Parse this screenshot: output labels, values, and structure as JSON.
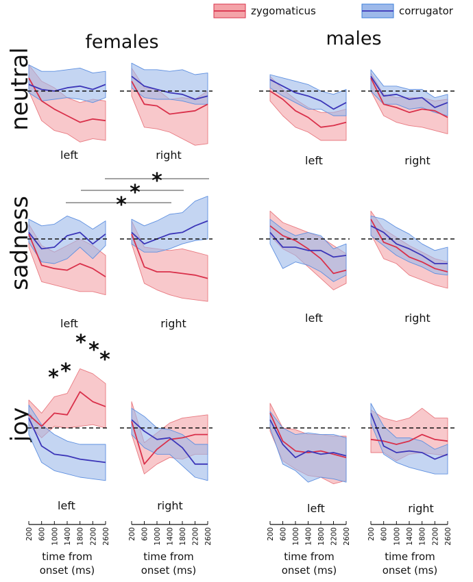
{
  "colors": {
    "zygomaticus_line": "#d9304a",
    "zygomaticus_fill": "#f4a3a8",
    "corrugator_line": "#3b35b8",
    "corrugator_fill": "#9db9ea"
  },
  "legend": {
    "zygomaticus": "zygomaticus",
    "corrugator": "corrugator"
  },
  "columns": {
    "females": "females",
    "males": "males"
  },
  "rows": [
    "neutral",
    "sadness",
    "joy"
  ],
  "sides": {
    "left": "left",
    "right": "right"
  },
  "x_axis": {
    "label_line1": "time from",
    "label_line2": "onset (ms)"
  },
  "significance_marker": "*",
  "chart_data": {
    "type": "line",
    "x": [
      200,
      600,
      1000,
      1400,
      1800,
      2200,
      2600
    ],
    "x_ticks": [
      "200",
      "600",
      "1000",
      "1400",
      "1800",
      "2200",
      "2600"
    ],
    "xlabel": "time from onset (ms)",
    "ylabel": "",
    "ylim": [
      -4,
      4
    ],
    "baseline": 0,
    "series_names": [
      "zygomaticus",
      "corrugator"
    ],
    "panels": [
      {
        "gender": "females",
        "emotion": "neutral",
        "side": "left",
        "zygomaticus": {
          "mean": [
            0.8,
            -0.6,
            -1.1,
            -1.5,
            -1.9,
            -1.7,
            -1.8
          ],
          "upper": [
            1.6,
            0.6,
            0.2,
            -0.4,
            -0.7,
            -0.5,
            -0.6
          ],
          "lower": [
            0.0,
            -1.8,
            -2.4,
            -2.6,
            -3.1,
            -2.9,
            -3.0
          ]
        },
        "corrugator": {
          "mean": [
            0.4,
            0.1,
            0.0,
            0.2,
            0.3,
            0.1,
            0.4
          ],
          "upper": [
            1.6,
            1.2,
            1.2,
            1.3,
            1.4,
            1.1,
            1.2
          ],
          "lower": [
            -0.1,
            -0.6,
            -0.5,
            -0.4,
            -0.5,
            -0.7,
            -0.4
          ]
        }
      },
      {
        "gender": "females",
        "emotion": "neutral",
        "side": "right",
        "zygomaticus": {
          "mean": [
            0.6,
            -0.8,
            -0.9,
            -1.4,
            -1.3,
            -1.2,
            -0.8
          ],
          "upper": [
            1.4,
            0.2,
            0.1,
            -0.5,
            -0.4,
            -0.5,
            0.0
          ],
          "lower": [
            -0.3,
            -2.2,
            -2.3,
            -2.5,
            -2.9,
            -3.3,
            -3.2
          ]
        },
        "corrugator": {
          "mean": [
            0.9,
            0.3,
            0.1,
            -0.1,
            -0.2,
            -0.5,
            -0.3
          ],
          "upper": [
            1.7,
            1.3,
            1.3,
            1.2,
            1.3,
            1.0,
            1.1
          ],
          "lower": [
            0.2,
            -0.4,
            -0.5,
            -0.5,
            -0.6,
            -0.8,
            -0.8
          ]
        }
      },
      {
        "gender": "males",
        "emotion": "neutral",
        "side": "left",
        "zygomaticus": {
          "mean": [
            0.0,
            -0.5,
            -1.2,
            -1.6,
            -2.2,
            -2.1,
            -1.9
          ],
          "upper": [
            0.9,
            0.1,
            -0.5,
            -1.0,
            -1.3,
            -1.3,
            -1.1
          ],
          "lower": [
            -0.6,
            -1.5,
            -2.2,
            -2.5,
            -3.0,
            -3.0,
            -3.0
          ]
        },
        "corrugator": {
          "mean": [
            0.7,
            0.3,
            -0.1,
            -0.3,
            -0.6,
            -1.1,
            -0.7
          ],
          "upper": [
            1.0,
            0.8,
            0.6,
            0.4,
            0.0,
            -0.2,
            0.1
          ],
          "lower": [
            0.2,
            -0.3,
            -0.7,
            -1.1,
            -1.1,
            -1.5,
            -1.5
          ]
        }
      },
      {
        "gender": "males",
        "emotion": "neutral",
        "side": "right",
        "zygomaticus": {
          "mean": [
            0.8,
            -0.8,
            -1.0,
            -1.3,
            -1.1,
            -1.2,
            -1.6
          ],
          "upper": [
            1.1,
            -0.2,
            -0.4,
            -0.4,
            -0.4,
            -0.6,
            -0.5
          ],
          "lower": [
            0.0,
            -1.5,
            -1.9,
            -2.1,
            -2.2,
            -2.4,
            -2.6
          ]
        },
        "corrugator": {
          "mean": [
            0.9,
            -0.3,
            -0.2,
            -0.5,
            -0.4,
            -1.0,
            -0.7
          ],
          "upper": [
            1.3,
            0.3,
            0.3,
            0.1,
            0.1,
            -0.4,
            -0.2
          ],
          "lower": [
            0.0,
            -0.8,
            -0.8,
            -1.1,
            -1.0,
            -1.3,
            -1.5
          ]
        }
      },
      {
        "gender": "females",
        "emotion": "sadness",
        "side": "left",
        "zygomaticus": {
          "mean": [
            0.3,
            -1.6,
            -1.8,
            -1.9,
            -1.5,
            -1.8,
            -2.3
          ],
          "upper": [
            0.9,
            -0.4,
            -0.8,
            -0.4,
            0.0,
            -0.4,
            -1.0
          ],
          "lower": [
            -0.5,
            -2.6,
            -2.8,
            -3.0,
            -3.2,
            -3.2,
            -3.4
          ]
        },
        "corrugator": {
          "mean": [
            0.4,
            -0.6,
            -0.5,
            0.2,
            0.4,
            -0.3,
            0.3
          ],
          "upper": [
            1.2,
            0.8,
            0.9,
            1.4,
            1.1,
            0.6,
            1.1
          ],
          "lower": [
            -0.2,
            -1.4,
            -1.5,
            -1.2,
            -0.5,
            -1.2,
            -0.4
          ]
        }
      },
      {
        "gender": "females",
        "emotion": "sadness",
        "side": "right",
        "zygomaticus": {
          "mean": [
            0.3,
            -1.7,
            -2.0,
            -2.0,
            -2.1,
            -2.2,
            -2.4
          ],
          "upper": [
            1.1,
            -0.5,
            -0.6,
            -0.7,
            -0.6,
            -0.8,
            -1.0
          ],
          "lower": [
            -0.3,
            -2.7,
            -3.1,
            -3.4,
            -3.6,
            -3.7,
            -3.8
          ]
        },
        "corrugator": {
          "mean": [
            0.4,
            -0.3,
            0.0,
            0.3,
            0.4,
            0.8,
            1.1
          ],
          "upper": [
            1.2,
            0.8,
            1.1,
            1.5,
            1.6,
            2.3,
            2.6
          ],
          "lower": [
            -0.3,
            -0.8,
            -0.8,
            -0.6,
            -0.3,
            -0.1,
            0.0
          ]
        }
      },
      {
        "gender": "males",
        "emotion": "sadness",
        "side": "left",
        "zygomaticus": {
          "mean": [
            0.8,
            0.2,
            -0.1,
            -0.6,
            -1.2,
            -2.1,
            -1.9
          ],
          "upper": [
            1.7,
            1.0,
            0.7,
            0.4,
            0.1,
            -0.4,
            -0.9
          ],
          "lower": [
            0.2,
            -0.6,
            -1.0,
            -1.7,
            -2.4,
            -3.1,
            -2.7
          ]
        },
        "corrugator": {
          "mean": [
            0.4,
            -0.5,
            -0.5,
            -0.7,
            -0.7,
            -1.1,
            -1.0
          ],
          "upper": [
            1.2,
            0.6,
            0.2,
            0.4,
            0.2,
            -0.6,
            -0.3
          ],
          "lower": [
            -0.3,
            -1.8,
            -1.4,
            -1.6,
            -2.0,
            -2.6,
            -2.2
          ]
        }
      },
      {
        "gender": "males",
        "emotion": "sadness",
        "side": "right",
        "zygomaticus": {
          "mean": [
            1.2,
            -0.2,
            -0.5,
            -1.1,
            -1.4,
            -1.8,
            -2.0
          ],
          "upper": [
            1.7,
            0.6,
            0.1,
            -0.4,
            -0.8,
            -1.2,
            -1.4
          ],
          "lower": [
            0.3,
            -1.2,
            -1.5,
            -2.2,
            -2.5,
            -2.8,
            -3.0
          ]
        },
        "corrugator": {
          "mean": [
            0.8,
            0.4,
            -0.3,
            -0.6,
            -1.0,
            -1.5,
            -1.5
          ],
          "upper": [
            1.4,
            1.2,
            0.7,
            0.3,
            -0.3,
            -0.7,
            -0.5
          ],
          "lower": [
            0.2,
            -0.4,
            -1.0,
            -1.4,
            -1.7,
            -2.1,
            -2.2
          ]
        }
      },
      {
        "gender": "females",
        "emotion": "joy",
        "side": "left",
        "zygomaticus": {
          "mean": [
            0.8,
            0.1,
            0.9,
            0.8,
            2.2,
            1.6,
            1.3
          ],
          "upper": [
            1.7,
            0.9,
            1.9,
            2.1,
            3.6,
            3.3,
            2.7
          ],
          "lower": [
            0.2,
            -0.6,
            0.1,
            0.0,
            0.1,
            0.2,
            0.0
          ]
        },
        "corrugator": {
          "mean": [
            0.6,
            -1.1,
            -1.6,
            -1.7,
            -1.9,
            -2.0,
            -2.1
          ],
          "upper": [
            1.4,
            0.2,
            -0.4,
            -0.8,
            -1.0,
            -1.0,
            -1.0
          ],
          "lower": [
            -0.4,
            -2.1,
            -2.6,
            -2.8,
            -3.0,
            -3.1,
            -3.2
          ]
        }
      },
      {
        "gender": "females",
        "emotion": "joy",
        "side": "right",
        "zygomaticus": {
          "mean": [
            0.4,
            -2.2,
            -1.3,
            -0.7,
            -0.6,
            -0.4,
            -0.4
          ],
          "upper": [
            1.6,
            -0.9,
            -0.3,
            0.3,
            0.6,
            0.7,
            0.8
          ],
          "lower": [
            -0.4,
            -2.8,
            -2.2,
            -1.8,
            -1.9,
            -1.6,
            -1.6
          ]
        },
        "corrugator": {
          "mean": [
            0.5,
            -0.2,
            -0.7,
            -0.6,
            -1.2,
            -2.2,
            -2.2
          ],
          "upper": [
            1.2,
            0.7,
            0.0,
            -0.1,
            -0.4,
            -1.0,
            -1.0
          ],
          "lower": [
            -0.4,
            -1.2,
            -1.6,
            -1.6,
            -2.3,
            -3.0,
            -3.2
          ]
        }
      },
      {
        "gender": "males",
        "emotion": "joy",
        "side": "left",
        "zygomaticus": {
          "mean": [
            0.9,
            -0.8,
            -1.4,
            -1.5,
            -1.4,
            -1.6,
            -1.8
          ],
          "upper": [
            1.5,
            0.0,
            -0.1,
            -0.4,
            -0.4,
            -0.5,
            -0.5
          ],
          "lower": [
            -0.2,
            -2.0,
            -2.5,
            -2.9,
            -3.0,
            -3.4,
            -3.2
          ]
        },
        "corrugator": {
          "mean": [
            0.5,
            -1.0,
            -1.8,
            -1.4,
            -1.6,
            -1.5,
            -1.7
          ],
          "upper": [
            1.0,
            0.0,
            -0.4,
            -0.3,
            -0.4,
            -0.4,
            -0.6
          ],
          "lower": [
            0.0,
            -2.2,
            -2.6,
            -3.3,
            -3.0,
            -3.1,
            -3.3
          ]
        }
      },
      {
        "gender": "males",
        "emotion": "joy",
        "side": "right",
        "zygomaticus": {
          "mean": [
            -0.7,
            -0.8,
            -1.0,
            -0.8,
            -0.4,
            -0.7,
            -0.8
          ],
          "upper": [
            1.1,
            0.6,
            0.4,
            0.6,
            1.2,
            0.6,
            0.6
          ],
          "lower": [
            -1.5,
            -1.5,
            -2.0,
            -1.6,
            -1.5,
            -1.6,
            -1.7
          ]
        },
        "corrugator": {
          "mean": [
            0.9,
            -1.1,
            -1.5,
            -1.4,
            -1.5,
            -1.9,
            -1.6
          ],
          "upper": [
            1.5,
            0.1,
            -0.6,
            -0.6,
            -0.8,
            -1.3,
            -1.0
          ],
          "lower": [
            0.3,
            -1.6,
            -2.1,
            -2.4,
            -2.6,
            -2.8,
            -2.8
          ]
        }
      }
    ],
    "significance": [
      {
        "emotion": "sadness",
        "gender": "females",
        "comparison": "left vs right",
        "bars": 3
      },
      {
        "emotion": "joy",
        "gender": "females",
        "side": "left",
        "starred_time_points": [
          1000,
          1400,
          1800,
          2200,
          2600
        ]
      }
    ]
  }
}
